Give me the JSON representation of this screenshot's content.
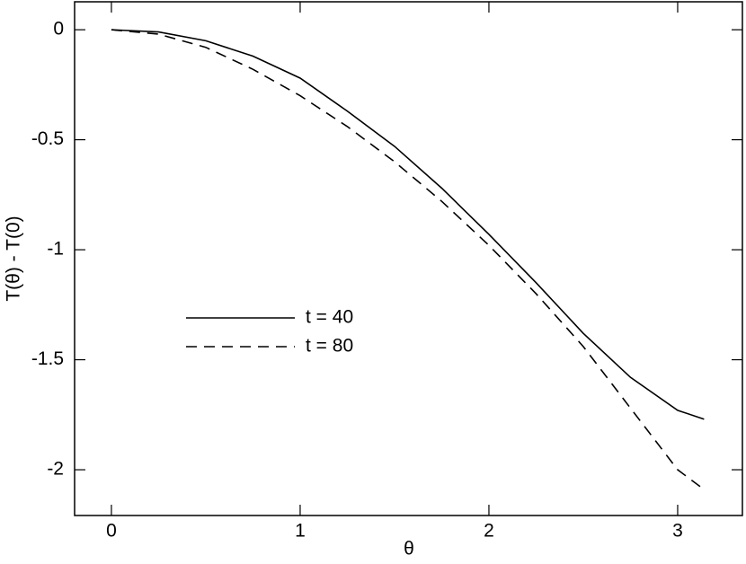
{
  "chart_data": {
    "type": "line",
    "x_label": "θ",
    "y_label": "T(θ) - T(0)",
    "x": [
      0,
      0.25,
      0.5,
      0.75,
      1,
      1.25,
      1.5,
      1.75,
      2,
      2.25,
      2.5,
      2.75,
      3,
      3.14
    ],
    "series": [
      {
        "name": "t = 40",
        "color": "#000000",
        "line_style": "solid",
        "values": [
          0,
          -0.01,
          -0.05,
          -0.12,
          -0.22,
          -0.37,
          -0.53,
          -0.72,
          -0.93,
          -1.15,
          -1.38,
          -1.58,
          -1.73,
          -1.77
        ]
      },
      {
        "name": "t = 80",
        "color": "#000000",
        "line_style": "dashed",
        "values": [
          0,
          -0.02,
          -0.08,
          -0.18,
          -0.3,
          -0.44,
          -0.6,
          -0.78,
          -0.98,
          -1.2,
          -1.44,
          -1.72,
          -2.0,
          -2.09
        ]
      }
    ],
    "xlim": [
      -0.195,
      3.343
    ],
    "ylim": [
      -2.208,
      0.127
    ],
    "xticks": [
      0,
      1,
      2,
      3
    ],
    "yticks": [
      0,
      -0.5,
      -1,
      -1.5,
      -2
    ],
    "legend": "center-left",
    "grid": false
  }
}
